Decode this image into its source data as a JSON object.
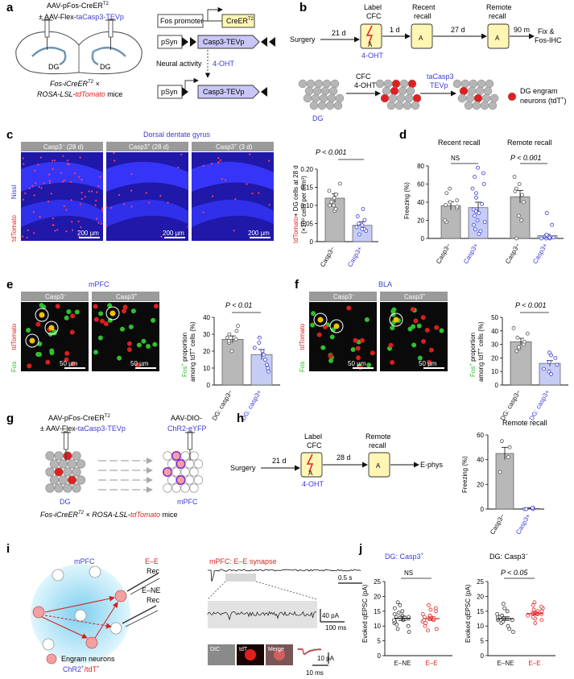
{
  "panels": {
    "a": {
      "letter": "a",
      "virus_line1": "AAV-pFos-CreER",
      "virus_line1_sup": "T2",
      "virus_line2_prefix": "± AAV-Flex-",
      "virus_line2_highlight": "taCasp3-TEVp",
      "region_left": "DG",
      "region_right": "DG",
      "mice_prefix": "Fos-iCreER",
      "mice_sup": "T2",
      "mice_mid": " × ",
      "mice_line2_prefix": "ROSA-LSL-",
      "mice_line2_highlight": "tdTomato",
      "mice_suffix": " mice",
      "fos_promoter": "Fos promoter",
      "creer": "CreER",
      "creer_sup": "T2",
      "psyn1": "pSyn",
      "casp_rev": "Casp3-TEVp",
      "neural_activity": "Neural activity",
      "ohdt": "4-OHT",
      "psyn2": "pSyn",
      "casp_fwd": "Casp3-TEVp"
    },
    "b": {
      "letter": "b",
      "surgery": "Surgery",
      "d21": "21 d",
      "label_cfc_1": "Label",
      "label_cfc_2": "CFC",
      "ohdt": "4-OHT",
      "d1": "1 d",
      "recent_1": "Recent",
      "recent_2": "recall",
      "d27": "27 d",
      "remote_1": "Remote",
      "remote_2": "recall",
      "m90": "90 m",
      "fix_1": "Fix &",
      "fix_2": "Fos-IHC",
      "box_a": "A",
      "cfc_arrow_1": "CFC",
      "cfc_arrow_2": "4-OHT",
      "tacasp_1": "taCasp3",
      "tacasp_2": "TEVp",
      "dg": "DG",
      "legend_1": "DG engram",
      "legend_2": "neurons (tdT",
      "legend_2_sup": "+",
      "legend_2_end": ")"
    },
    "c": {
      "letter": "c",
      "title": "Dorsal dentate gyrus",
      "tab1": "Casp3",
      "tab1_sup": "−",
      "tab1_suffix": " (28 d)",
      "tab2": "Casp3",
      "tab2_sup": "+",
      "tab2_suffix": " (28 d)",
      "tab3": "Casp3",
      "tab3_sup": "+",
      "tab3_suffix": " (3 d)",
      "side_label_top": "Nissl",
      "side_label_bottom": "tdTomato",
      "scale_bar": "200 µm",
      "p_value": "P < 0.001",
      "ylabel_red": "tdTomato",
      "ylabel_rest": "+ DG cells at 28 d",
      "ylabel_2": "(×10³ cells per mm³)"
    },
    "d": {
      "letter": "d",
      "recent_title": "Recent recall",
      "remote_title": "Remote recall",
      "ns": "NS",
      "p_value": "P < 0.001",
      "ylabel": "Freezing (%)"
    },
    "e": {
      "letter": "e",
      "title": "mPFC",
      "tab1": "Casp3",
      "tab1_sup": "−",
      "tab2": "Casp3",
      "tab2_sup": "+",
      "side_fos": "Fos",
      "side_tdt": "tdTomato",
      "scale_bar": "50 µm",
      "p_value": "P < 0.01",
      "ylabel_1": "Fos",
      "ylabel_1_sup": "+",
      "ylabel_1_rest": " proportion",
      "ylabel_2": "among tdT",
      "ylabel_2_sup": "+",
      "ylabel_2_rest": " cells (%)"
    },
    "f": {
      "letter": "f",
      "title": "BLA",
      "tab1": "Casp3",
      "tab1_sup": "−",
      "tab2": "Casp3",
      "tab2_sup": "+",
      "side_fos": "Fos",
      "side_tdt": "tdTomato",
      "scale_bar": "50 µm",
      "p_value": "P < 0.001",
      "ylabel_1": "Fos",
      "ylabel_1_sup": "+",
      "ylabel_1_rest": " proportion",
      "ylabel_2": "among tdT",
      "ylabel_2_sup": "+",
      "ylabel_2_rest": " cells (%)"
    },
    "g": {
      "letter": "g",
      "virus_line1": "AAV-pFos-CreER",
      "virus_line1_sup": "T2",
      "virus_line2_prefix": "± AAV-Flex-",
      "virus_line2_highlight": "taCasp3-TEVp",
      "virus_right_1": "AAV-DIO-",
      "virus_right_2": "ChR2-eYFP",
      "dg": "DG",
      "mpfc": "mPFC",
      "mice": "Fos-iCreER",
      "mice_sup": "T2",
      "mice_rest": " × ROSA-LSL-",
      "mice_highlight": "tdTomato",
      "mice_end": " mice"
    },
    "h": {
      "letter": "h",
      "surgery": "Surgery",
      "d21": "21 d",
      "label_1": "Label",
      "label_2": "CFC",
      "ohdt": "4-OHT",
      "d28": "28 d",
      "remote_1": "Remote",
      "remote_2": "recall",
      "ephys": "E-phys",
      "box_a": "A",
      "chart_title": "Remote recall",
      "ylabel": "Freezing (%)"
    },
    "i": {
      "letter": "i",
      "mpfc": "mPFC",
      "ee": "E–E",
      "rec1": "Rec",
      "ene": "E–NE",
      "rec2": "Rec",
      "legend_1": "Engram neurons",
      "legend_2a": "ChR2",
      "legend_2a_sup": "+",
      "legend_2b": "/tdT",
      "legend_2b_sup": "+",
      "trace_title": "mPFC: E–E synapse",
      "scale_time1": "0.5 s",
      "scale_amp": "40 pA",
      "scale_time2": "100 ms",
      "dic": "DIC",
      "tdt": "tdT",
      "merge": "Merge",
      "scale_amp2": "10 pA",
      "scale_time3": "10 ms"
    },
    "j": {
      "letter": "j",
      "title1_prefix": "DG: Casp3",
      "title1_sup": "+",
      "title2_prefix": "DG: Casp3",
      "title2_sup": "−",
      "ns": "NS",
      "p_value": "P < 0.05",
      "ylabel": "Evoked qEPSC (pA)"
    }
  },
  "chart_data": [
    {
      "id": "c",
      "type": "bar",
      "categories": [
        "Casp3−",
        "Casp3+"
      ],
      "values": [
        0.12,
        0.045
      ],
      "errors": [
        0.012,
        0.01
      ],
      "points": [
        [
          0.085,
          0.09,
          0.1,
          0.11,
          0.12,
          0.13,
          0.14,
          0.16,
          0.13,
          0.1
        ],
        [
          0.02,
          0.03,
          0.035,
          0.04,
          0.045,
          0.05,
          0.06,
          0.07,
          0.09,
          0.035
        ]
      ],
      "ylim": [
        0,
        0.2
      ],
      "yticks": [
        0,
        0.05,
        0.1,
        0.15,
        0.2
      ],
      "ytick_labels": [
        "0",
        "0.05",
        "0.10",
        "0.15",
        "0.20"
      ],
      "colors": [
        "#b8b8b8",
        "#c6cdf5"
      ],
      "point_colors": [
        "#555555",
        "#3a3ad8"
      ]
    },
    {
      "id": "d",
      "type": "bar",
      "groups": [
        {
          "categories": [
            "Casp3−",
            "Casp3+"
          ],
          "values": [
            36,
            34
          ],
          "errors": [
            4.5,
            6
          ],
          "points": [
            [
              18,
              20,
              33,
              35,
              37,
              40,
              42,
              50,
              55
            ],
            [
              5,
              8,
              10,
              15,
              18,
              20,
              25,
              28,
              30,
              32,
              38,
              45,
              50,
              55,
              60,
              68,
              72,
              78
            ]
          ]
        },
        {
          "categories": [
            "Casp3−",
            "Casp3+"
          ],
          "values": [
            46,
            3
          ],
          "errors": [
            7,
            1.5
          ],
          "points": [
            [
              0,
              20,
              25,
              40,
              48,
              52,
              55,
              60,
              68
            ],
            [
              0,
              0,
              0,
              1,
              1,
              2,
              2,
              3,
              4,
              15,
              28
            ]
          ]
        }
      ],
      "ylim": [
        0,
        80
      ],
      "yticks": [
        0,
        20,
        40,
        60,
        80
      ],
      "colors": [
        "#b8b8b8",
        "#c6cdf5"
      ],
      "point_colors": [
        "#555555",
        "#3a3ad8"
      ]
    },
    {
      "id": "e",
      "type": "bar",
      "categories": [
        "DG: casp3−",
        "DG: casp3+"
      ],
      "values": [
        27,
        18
      ],
      "errors": [
        2,
        3
      ],
      "points": [
        [
          20,
          25,
          26,
          27,
          28,
          30,
          32,
          35
        ],
        [
          8,
          10,
          12,
          15,
          18,
          20,
          22,
          25,
          28
        ]
      ],
      "ylim": [
        0,
        40
      ],
      "yticks": [
        0,
        10,
        20,
        30,
        40
      ],
      "colors": [
        "#b8b8b8",
        "#c6cdf5"
      ],
      "point_colors": [
        "#555555",
        "#3a3ad8"
      ]
    },
    {
      "id": "f",
      "type": "bar",
      "categories": [
        "DG: casp3−",
        "DG: casp3+"
      ],
      "values": [
        32,
        16
      ],
      "errors": [
        2.5,
        2
      ],
      "points": [
        [
          25,
          27,
          30,
          32,
          35,
          38,
          42,
          28
        ],
        [
          8,
          10,
          12,
          15,
          17,
          20,
          22,
          24
        ]
      ],
      "ylim": [
        0,
        50
      ],
      "yticks": [
        0,
        10,
        20,
        30,
        40,
        50
      ],
      "colors": [
        "#b8b8b8",
        "#c6cdf5"
      ],
      "point_colors": [
        "#555555",
        "#3a3ad8"
      ]
    },
    {
      "id": "h",
      "type": "bar",
      "categories": [
        "Casp3−",
        "Casp3+"
      ],
      "values": [
        45,
        0.5
      ],
      "errors": [
        5,
        0.5
      ],
      "points": [
        [
          30,
          42,
          50,
          55
        ],
        [
          0,
          0,
          0,
          1,
          1
        ]
      ],
      "ylim": [
        0,
        60
      ],
      "yticks": [
        0,
        20,
        40,
        60
      ],
      "colors": [
        "#b8b8b8",
        "#c6cdf5"
      ],
      "point_colors": [
        "#555555",
        "#3a3ad8"
      ]
    },
    {
      "id": "j1",
      "type": "scatter",
      "categories": [
        "E–NE",
        "E–E"
      ],
      "means": [
        12.6,
        12.5
      ],
      "errors": [
        0.7,
        0.6
      ],
      "points": [
        [
          8,
          9,
          10,
          10.5,
          11,
          11.5,
          12,
          12,
          12.5,
          13,
          13,
          13.5,
          14,
          14.5,
          15,
          16,
          17,
          18
        ],
        [
          8.5,
          9,
          10,
          11,
          11.5,
          12,
          12,
          12.5,
          13,
          13,
          13.5,
          14,
          15,
          15.5,
          16,
          17
        ]
      ],
      "ylim": [
        0,
        25
      ],
      "yticks": [
        0,
        5,
        10,
        15,
        20,
        25
      ],
      "point_colors": [
        "#333333",
        "#e02020"
      ]
    },
    {
      "id": "j2",
      "type": "scatter",
      "categories": [
        "E–NE",
        "E–E"
      ],
      "means": [
        12.5,
        14.2
      ],
      "errors": [
        0.6,
        0.5
      ],
      "points": [
        [
          8,
          9,
          10,
          11,
          11.5,
          12,
          12,
          12.5,
          13,
          13,
          13.5,
          14,
          15,
          16,
          17.5
        ],
        [
          11,
          12,
          12.5,
          13,
          13.5,
          14,
          14,
          14.5,
          15,
          15,
          15.5,
          16,
          16.5,
          17,
          18
        ]
      ],
      "ylim": [
        0,
        25
      ],
      "yticks": [
        0,
        5,
        10,
        15,
        20,
        25
      ],
      "point_colors": [
        "#333333",
        "#e02020"
      ]
    }
  ]
}
